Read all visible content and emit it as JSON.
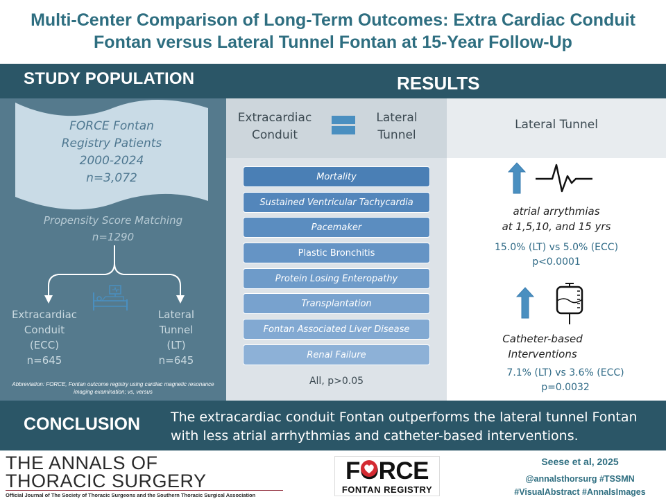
{
  "title": {
    "line1": "Multi-Center Comparison of Long-Term Outcomes: Extra Cardiac Conduit",
    "line2": "Fontan versus Lateral Tunnel Fontan at 15-Year Follow-Up"
  },
  "study_population": {
    "heading": "STUDY POPULATION",
    "registry": [
      "FORCE Fontan",
      "Registry Patients",
      "2000-2024",
      "n=3,072"
    ],
    "matching": "Propensity Score Matching",
    "matched_n": "n=1290",
    "group_ecc": [
      "Extracardiac",
      "Conduit",
      "(ECC)",
      "n=645"
    ],
    "group_lt": [
      "Lateral",
      "Tunnel",
      "(LT)",
      "n=645"
    ],
    "abbreviation": "Abbreviation: FORCE, Fontan outcome registry using cardiac magnetic resonance imaging examination; vs, versus"
  },
  "results": {
    "heading": "RESULTS",
    "equal_left": [
      "Extracardiac",
      "Conduit"
    ],
    "equal_right": [
      "Lateral",
      "Tunnel"
    ],
    "outcomes": [
      {
        "label": "Mortality",
        "color": "#4a7fb5"
      },
      {
        "label": "Sustained Ventricular Tachycardia",
        "color": "#5386bb"
      },
      {
        "label": "Pacemaker",
        "color": "#5b8dc0"
      },
      {
        "label": "Plastic Bronchitis",
        "color": "#6594c5"
      },
      {
        "label": "Protein Losing Enteropathy",
        "color": "#6e9bc9"
      },
      {
        "label": "Transplantation",
        "color": "#78a2ce"
      },
      {
        "label": "Fontan Associated Liver Disease",
        "color": "#82a9d2"
      },
      {
        "label": "Renal Failure",
        "color": "#8db1d7"
      }
    ],
    "all_p": "All, p>0.05",
    "lt_heading": "Lateral Tunnel",
    "finding1": {
      "label_line1": "atrial arrythmias",
      "label_line2": "at 1,5,10, and 15 yrs",
      "stat": "15.0% (LT) vs 5.0% (ECC)",
      "p": "p<0.0001"
    },
    "finding2": {
      "label_line1": "Catheter-based",
      "label_line2": "Interventions",
      "stat": "7.1% (LT) vs 3.6% (ECC)",
      "p": "p=0.0032"
    }
  },
  "conclusion": {
    "heading": "CONCLUSION",
    "text": "The extracardiac conduit Fontan outperforms the lateral tunnel Fontan with less atrial arrhythmias and catheter-based interventions."
  },
  "footer": {
    "journal_line1": "THE ANNALS OF",
    "journal_line2": "THORACIC SURGERY",
    "journal_sub": "Official Journal of The Society of Thoracic Surgeons and the Southern Thoracic Surgical Association",
    "force_word": "FORCE",
    "force_sub": "FONTAN REGISTRY",
    "authors": "Seese et al, 2025",
    "handle": "@annalsthorsurg #TSSMN",
    "tags": "#VisualAbstract #AnnalsImages"
  },
  "colors": {
    "title": "#2e6e80",
    "band": "#2b5667",
    "left_panel": "#557a8d",
    "arrow": "#4a8fc0",
    "force_heart": "#d42a32"
  }
}
